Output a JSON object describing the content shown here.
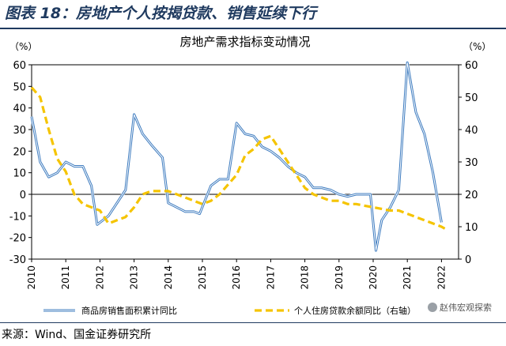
{
  "header": {
    "title": "图表 18：房地产个人按揭贷款、销售延续下行"
  },
  "source": "来源：Wind、国金证券研究所",
  "watermark": "赵伟宏观探索",
  "colors": {
    "title": "#1f3a5f",
    "series_blue": "#3d7bbf",
    "series_yellow": "#f5c400"
  },
  "chart_data": {
    "type": "line",
    "title": "房地产需求指标变动情况",
    "y_left_unit": "（%）",
    "y_right_unit": "（%）",
    "y_left_range": [
      -30,
      60
    ],
    "y_left_ticks": [
      -30,
      -20,
      -10,
      0,
      10,
      20,
      30,
      40,
      50,
      60
    ],
    "y_right_range": [
      0,
      60
    ],
    "y_right_ticks": [
      0,
      10,
      20,
      30,
      40,
      50,
      60
    ],
    "x_range": [
      2010,
      2022.5
    ],
    "x_ticks": [
      "2010",
      "2011",
      "2012",
      "2013",
      "2014",
      "2015",
      "2016",
      "2017",
      "2018",
      "2019",
      "2020",
      "2021",
      "2022"
    ],
    "grid": false,
    "legend_position": "bottom",
    "series": [
      {
        "name": "商品房销售面积累计同比",
        "axis": "left",
        "style": "solid",
        "points": [
          [
            2010.0,
            36
          ],
          [
            2010.25,
            15
          ],
          [
            2010.5,
            8
          ],
          [
            2010.75,
            10
          ],
          [
            2011.0,
            15
          ],
          [
            2011.25,
            13
          ],
          [
            2011.5,
            13
          ],
          [
            2011.75,
            4
          ],
          [
            2011.92,
            -14
          ],
          [
            2012.25,
            -10
          ],
          [
            2012.5,
            -4
          ],
          [
            2012.75,
            2
          ],
          [
            2013.0,
            37
          ],
          [
            2013.25,
            28
          ],
          [
            2013.5,
            23
          ],
          [
            2013.83,
            17
          ],
          [
            2014.0,
            -4
          ],
          [
            2014.25,
            -6
          ],
          [
            2014.5,
            -8
          ],
          [
            2014.75,
            -8
          ],
          [
            2014.92,
            -9
          ],
          [
            2015.25,
            4
          ],
          [
            2015.5,
            7
          ],
          [
            2015.75,
            7
          ],
          [
            2016.0,
            33
          ],
          [
            2016.25,
            28
          ],
          [
            2016.5,
            27
          ],
          [
            2016.75,
            22
          ],
          [
            2017.0,
            20
          ],
          [
            2017.25,
            17
          ],
          [
            2017.5,
            13
          ],
          [
            2017.75,
            10
          ],
          [
            2018.0,
            8
          ],
          [
            2018.25,
            3
          ],
          [
            2018.5,
            3
          ],
          [
            2018.75,
            2
          ],
          [
            2019.0,
            0
          ],
          [
            2019.25,
            -1
          ],
          [
            2019.5,
            0
          ],
          [
            2019.75,
            0
          ],
          [
            2019.92,
            0
          ],
          [
            2020.08,
            -26
          ],
          [
            2020.25,
            -12
          ],
          [
            2020.5,
            -6
          ],
          [
            2020.75,
            2
          ],
          [
            2021.0,
            61
          ],
          [
            2021.25,
            38
          ],
          [
            2021.5,
            28
          ],
          [
            2021.75,
            10
          ],
          [
            2022.0,
            -13
          ]
        ]
      },
      {
        "name": "个人住房贷款余额同比（右轴）",
        "axis": "right",
        "style": "dashed",
        "points": [
          [
            2010.0,
            53
          ],
          [
            2010.25,
            50
          ],
          [
            2010.5,
            40
          ],
          [
            2010.75,
            31
          ],
          [
            2011.0,
            27
          ],
          [
            2011.25,
            20
          ],
          [
            2011.5,
            17
          ],
          [
            2011.75,
            16
          ],
          [
            2012.0,
            15
          ],
          [
            2012.25,
            11
          ],
          [
            2012.5,
            12
          ],
          [
            2012.75,
            13
          ],
          [
            2013.0,
            16
          ],
          [
            2013.25,
            20
          ],
          [
            2013.5,
            21
          ],
          [
            2013.75,
            21
          ],
          [
            2014.0,
            21
          ],
          [
            2014.25,
            20
          ],
          [
            2014.5,
            19
          ],
          [
            2014.75,
            18
          ],
          [
            2015.0,
            17
          ],
          [
            2015.25,
            18
          ],
          [
            2015.5,
            20
          ],
          [
            2015.75,
            23
          ],
          [
            2016.0,
            26
          ],
          [
            2016.25,
            32
          ],
          [
            2016.5,
            34
          ],
          [
            2016.75,
            37
          ],
          [
            2017.0,
            38
          ],
          [
            2017.25,
            34
          ],
          [
            2017.5,
            30
          ],
          [
            2017.75,
            26
          ],
          [
            2018.0,
            22
          ],
          [
            2018.25,
            20
          ],
          [
            2018.5,
            19
          ],
          [
            2018.75,
            18
          ],
          [
            2019.0,
            18
          ],
          [
            2019.25,
            17
          ],
          [
            2019.5,
            17
          ],
          [
            2019.75,
            16.5
          ],
          [
            2020.0,
            16
          ],
          [
            2020.25,
            15.5
          ],
          [
            2020.5,
            15
          ],
          [
            2020.75,
            15
          ],
          [
            2021.0,
            14
          ],
          [
            2021.25,
            13
          ],
          [
            2021.5,
            12
          ],
          [
            2021.75,
            11
          ],
          [
            2022.0,
            10
          ],
          [
            2022.17,
            9
          ]
        ]
      }
    ]
  }
}
